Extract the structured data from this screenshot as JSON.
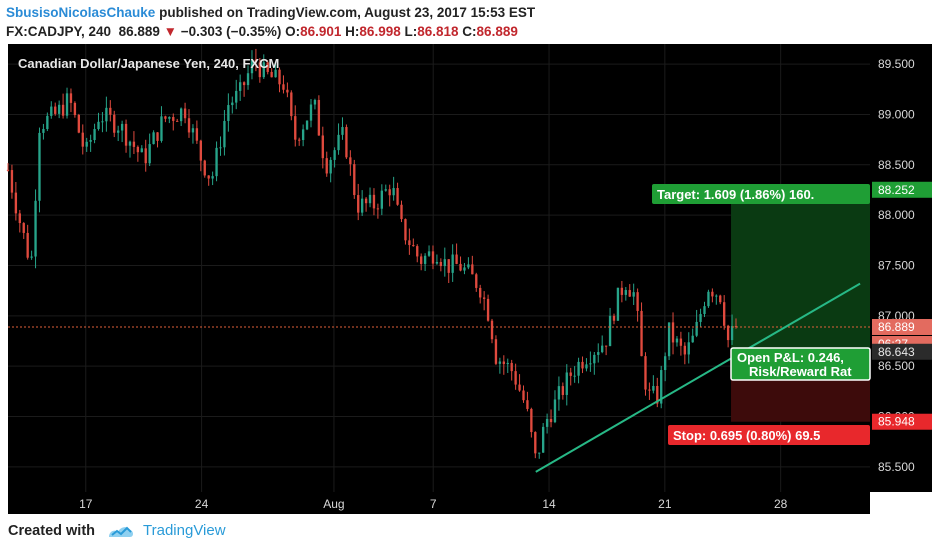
{
  "header": {
    "author": "SbusisoNicolasChauke",
    "published_text": "published on TradingView.com, August 23, 2017 15:53 EST",
    "symbol_text": "FX:CADJPY, 240",
    "last_price": "86.889",
    "change_arrow": "▼",
    "change_text": "−0.303 (−0.35%)",
    "open_label": "O:",
    "open_value": "86.901",
    "high_label": "H:",
    "high_value": "86.998",
    "low_label": "L:",
    "low_value": "86.818",
    "close_label": "C:",
    "close_value": "86.889"
  },
  "footer": {
    "created_with": "Created with",
    "brand": "TradingView"
  },
  "colors": {
    "background": "#000000",
    "up": "#27a48a",
    "down": "#e04a3e",
    "target_zone": "#0a3a12",
    "stop_zone": "#3d0b0b",
    "target_label": "#1f9e35",
    "stop_label": "#e8282c",
    "trendline": "#27b886"
  },
  "chart_data": {
    "type": "candlestick",
    "title": "Canadian Dollar/Japanese Yen, 240, FXCM",
    "ylim": [
      85.25,
      89.7
    ],
    "y_ticks": [
      "85.500",
      "86.000",
      "86.500",
      "87.000",
      "87.500",
      "88.000",
      "88.500",
      "89.000",
      "89.500"
    ],
    "x_ticks": [
      {
        "label": "17",
        "day": 17
      },
      {
        "label": "24",
        "day": 24
      },
      {
        "label": "Aug",
        "day": 32
      },
      {
        "label": "7",
        "day": 38
      },
      {
        "label": "14",
        "day": 45
      },
      {
        "label": "21",
        "day": 52
      },
      {
        "label": "28",
        "day": 59
      }
    ],
    "x_range_days": [
      12.3,
      64.4
    ],
    "anchors": [
      [
        12.3,
        88.45
      ],
      [
        13.0,
        87.95
      ],
      [
        13.7,
        87.5
      ],
      [
        14.2,
        88.9
      ],
      [
        15.2,
        89.0
      ],
      [
        16.0,
        89.15
      ],
      [
        17.0,
        88.6
      ],
      [
        17.8,
        89.0
      ],
      [
        19.0,
        88.9
      ],
      [
        20.5,
        88.55
      ],
      [
        21.7,
        88.95
      ],
      [
        23.0,
        89.05
      ],
      [
        24.0,
        88.55
      ],
      [
        24.6,
        88.35
      ],
      [
        25.6,
        89.1
      ],
      [
        26.3,
        89.2
      ],
      [
        27.2,
        89.55
      ],
      [
        27.8,
        89.4
      ],
      [
        29.0,
        89.3
      ],
      [
        29.6,
        88.75
      ],
      [
        30.8,
        89.1
      ],
      [
        31.5,
        88.5
      ],
      [
        32.6,
        88.8
      ],
      [
        33.4,
        88.1
      ],
      [
        34.4,
        88.1
      ],
      [
        35.5,
        88.3
      ],
      [
        36.0,
        87.9
      ],
      [
        37.2,
        87.55
      ],
      [
        38.2,
        87.65
      ],
      [
        38.8,
        87.5
      ],
      [
        39.6,
        87.5
      ],
      [
        40.8,
        87.3
      ],
      [
        41.4,
        87.0
      ],
      [
        41.8,
        86.6
      ],
      [
        42.8,
        86.45
      ],
      [
        43.6,
        86.1
      ],
      [
        44.2,
        85.55
      ],
      [
        44.8,
        85.95
      ],
      [
        45.6,
        86.2
      ],
      [
        46.4,
        86.45
      ],
      [
        47.2,
        86.6
      ],
      [
        48.4,
        86.75
      ],
      [
        49.0,
        87.1
      ],
      [
        49.6,
        87.35
      ],
      [
        50.2,
        87.2
      ],
      [
        50.6,
        86.55
      ],
      [
        51.0,
        86.2
      ],
      [
        51.6,
        86.2
      ],
      [
        52.2,
        86.85
      ],
      [
        53.2,
        86.6
      ],
      [
        53.8,
        86.8
      ],
      [
        54.6,
        87.3
      ],
      [
        55.4,
        87.2
      ],
      [
        55.8,
        86.75
      ],
      [
        56.3,
        86.89
      ]
    ],
    "candle_count": 186,
    "last_close": 86.889,
    "last_close_label": "86.889",
    "countdown": "06:27",
    "entry_label": "86.643",
    "target_value": 88.252,
    "target_value_label": "88.252",
    "stop_value": 85.948,
    "stop_value_label": "85.948",
    "entry_value": 86.643,
    "position_start_day": 56.0,
    "target_text": "Target: 1.609 (1.86%) 160.",
    "stop_text": "Stop: 0.695 (0.80%) 69.5",
    "pnl_text": "Open P&L: 0.246,",
    "rr_text": "Risk/Reward Rat",
    "trendline": [
      [
        44.2,
        85.45
      ],
      [
        63.8,
        87.32
      ]
    ]
  }
}
